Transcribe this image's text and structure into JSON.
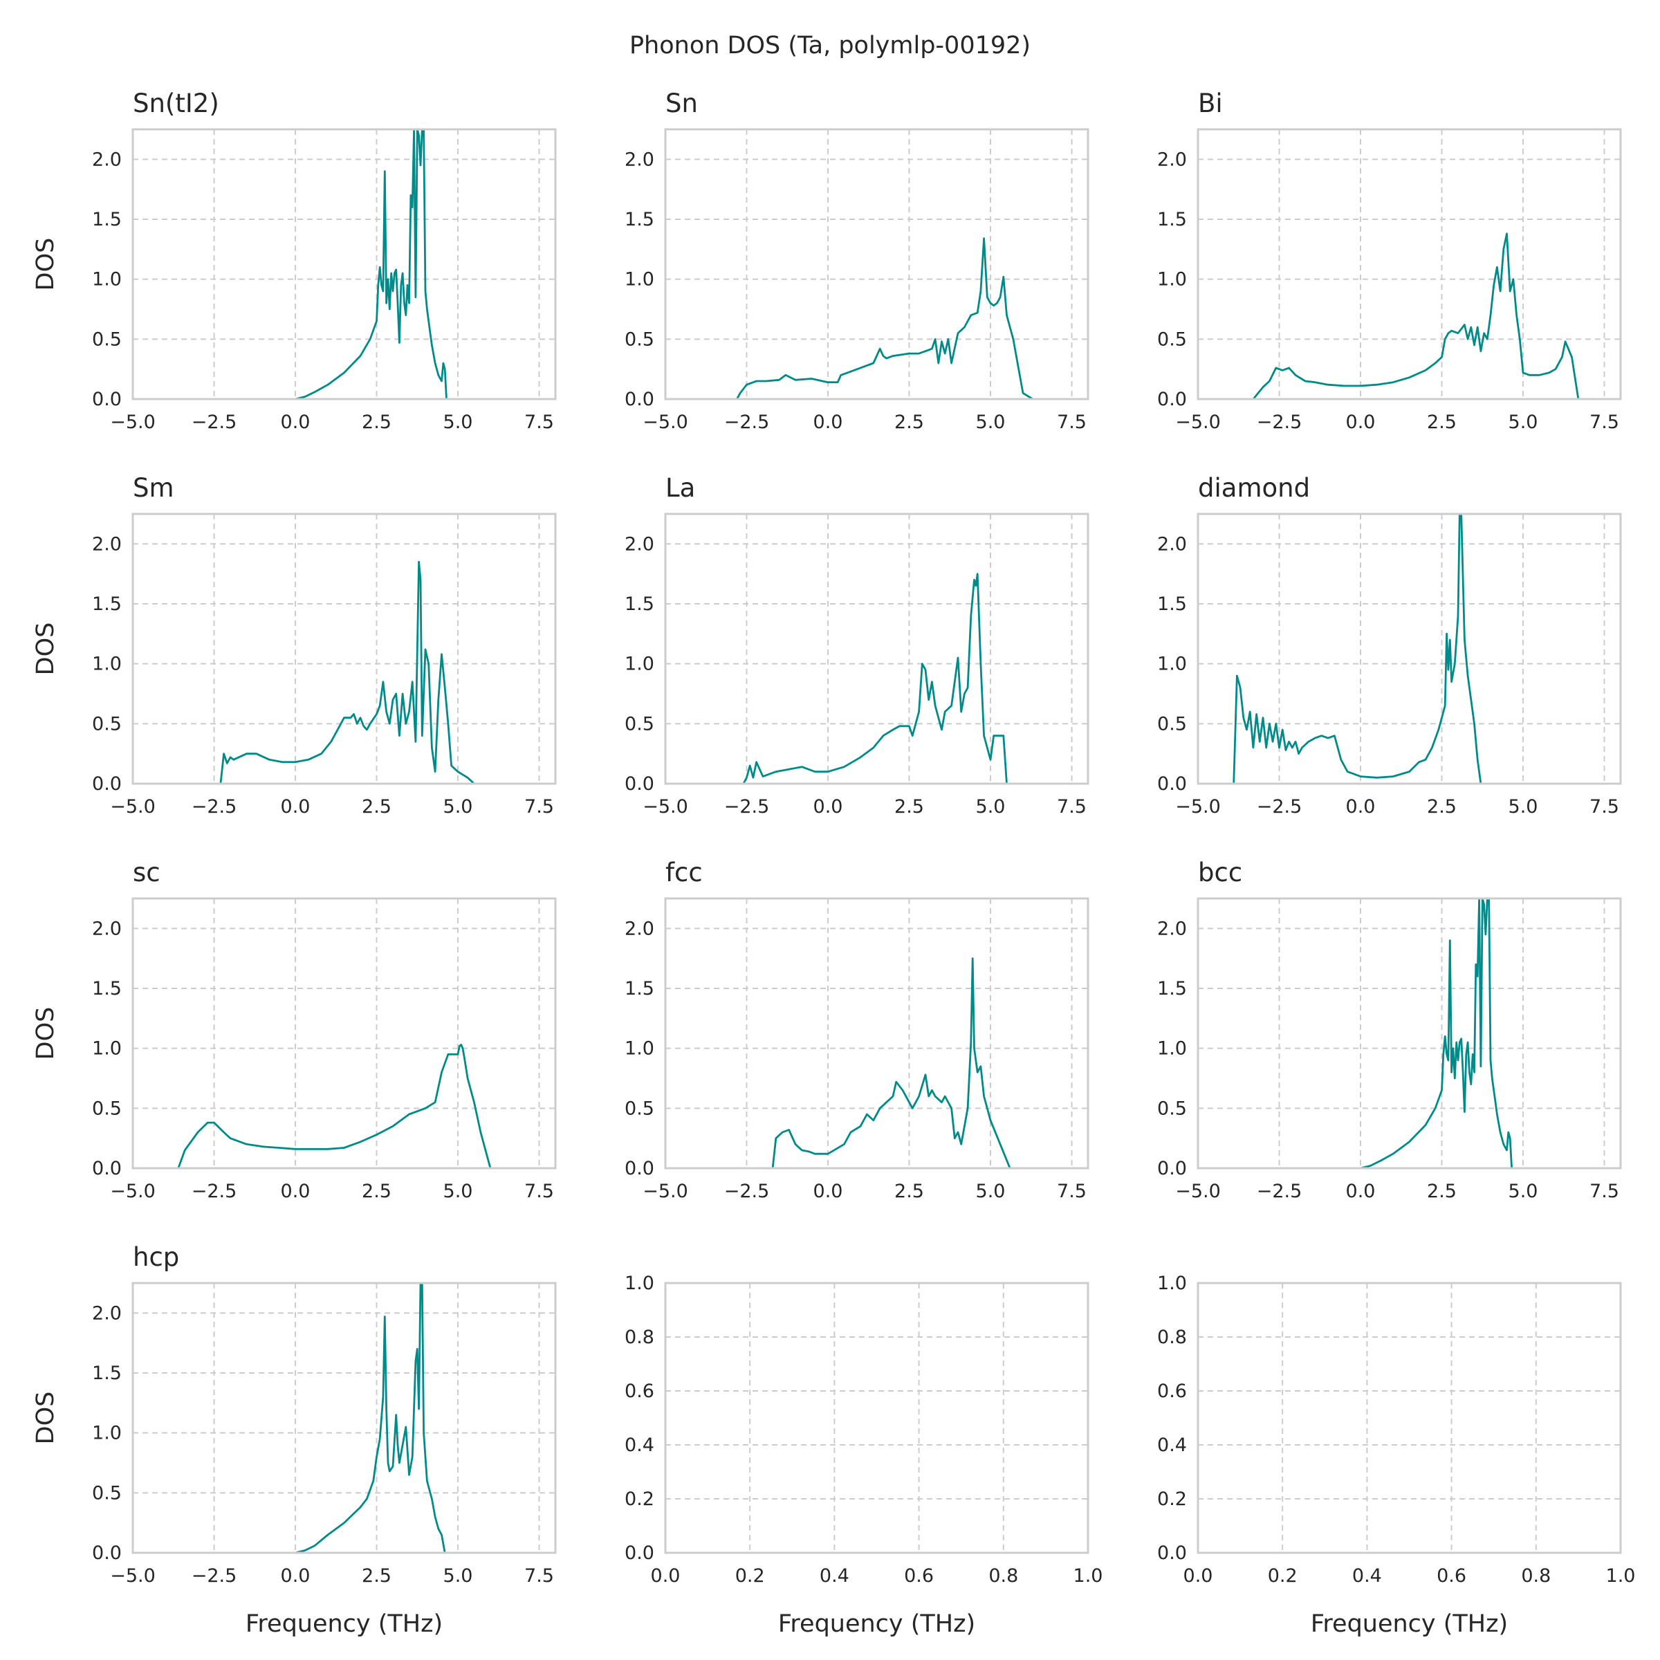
{
  "figure_title": "Phonon DOS (Ta, polymlp-00192)",
  "colors": {
    "line": "#008b8b",
    "frame": "#cccccc",
    "grid": "#cccccc",
    "text": "#262626"
  },
  "chart_data": [
    {
      "type": "line",
      "title": "Sn(tI2)",
      "xlabel": "",
      "ylabel": "DOS",
      "xlim": [
        -5,
        8
      ],
      "ylim": [
        0,
        2.25
      ],
      "xticks": [
        "−5.0",
        "−2.5",
        "0.0",
        "2.5",
        "5.0",
        "7.5"
      ],
      "yticks": [
        "0.0",
        "0.5",
        "1.0",
        "1.5",
        "2.0"
      ],
      "grid": true,
      "x": [
        0,
        0.3,
        0.6,
        1.0,
        1.5,
        2.0,
        2.3,
        2.5,
        2.55,
        2.6,
        2.65,
        2.7,
        2.75,
        2.8,
        2.85,
        2.9,
        2.95,
        3.0,
        3.05,
        3.1,
        3.15,
        3.2,
        3.25,
        3.3,
        3.35,
        3.4,
        3.45,
        3.5,
        3.55,
        3.6,
        3.65,
        3.7,
        3.75,
        3.8,
        3.85,
        3.9,
        3.95,
        4.0,
        4.05,
        4.1,
        4.15,
        4.2,
        4.3,
        4.4,
        4.5,
        4.55,
        4.6,
        4.65,
        4.7,
        4.8
      ],
      "y": [
        0,
        0.02,
        0.06,
        0.12,
        0.22,
        0.36,
        0.5,
        0.65,
        0.95,
        1.1,
        0.95,
        0.9,
        1.9,
        0.8,
        1.0,
        0.75,
        1.05,
        0.9,
        1.05,
        1.08,
        0.8,
        0.47,
        0.95,
        1.05,
        0.8,
        0.7,
        0.95,
        0.8,
        1.7,
        1.6,
        2.25,
        0.85,
        2.25,
        2.2,
        1.95,
        2.25,
        2.25,
        0.9,
        0.75,
        0.65,
        0.55,
        0.45,
        0.3,
        0.2,
        0.15,
        0.3,
        0.25,
        0.0,
        0,
        0
      ]
    },
    {
      "type": "line",
      "title": "Sn",
      "xlabel": "",
      "ylabel": "",
      "xlim": [
        -5,
        8
      ],
      "ylim": [
        0,
        2.25
      ],
      "xticks": [
        "−5.0",
        "−2.5",
        "0.0",
        "2.5",
        "5.0",
        "7.5"
      ],
      "yticks": [
        "0.0",
        "0.5",
        "1.0",
        "1.5",
        "2.0"
      ],
      "grid": true,
      "x": [
        -3.2,
        -2.8,
        -2.7,
        -2.5,
        -2.2,
        -1.9,
        -1.5,
        -1.3,
        -1.0,
        -0.5,
        0,
        0.3,
        0.4,
        0.6,
        1.0,
        1.4,
        1.6,
        1.7,
        1.8,
        2.0,
        2.5,
        2.8,
        3.0,
        3.2,
        3.3,
        3.4,
        3.5,
        3.6,
        3.7,
        3.8,
        4.0,
        4.2,
        4.4,
        4.6,
        4.7,
        4.8,
        4.9,
        5.0,
        5.1,
        5.2,
        5.3,
        5.4,
        5.5,
        5.6,
        5.7,
        5.8,
        5.9,
        6.0,
        6.3,
        6.8
      ],
      "y": [
        0,
        0,
        0.05,
        0.12,
        0.15,
        0.15,
        0.16,
        0.2,
        0.16,
        0.17,
        0.14,
        0.14,
        0.2,
        0.22,
        0.26,
        0.3,
        0.42,
        0.36,
        0.34,
        0.36,
        0.38,
        0.38,
        0.4,
        0.42,
        0.5,
        0.3,
        0.48,
        0.38,
        0.5,
        0.3,
        0.55,
        0.6,
        0.7,
        0.72,
        0.9,
        1.34,
        0.85,
        0.8,
        0.78,
        0.8,
        0.85,
        1.02,
        0.7,
        0.6,
        0.5,
        0.35,
        0.2,
        0.05,
        0,
        0
      ]
    },
    {
      "type": "line",
      "title": "Bi",
      "xlabel": "",
      "ylabel": "",
      "xlim": [
        -5,
        8
      ],
      "ylim": [
        0,
        2.25
      ],
      "xticks": [
        "−5.0",
        "−2.5",
        "0.0",
        "2.5",
        "5.0",
        "7.5"
      ],
      "yticks": [
        "0.0",
        "0.5",
        "1.0",
        "1.5",
        "2.0"
      ],
      "grid": true,
      "x": [
        -4.2,
        -3.3,
        -3.0,
        -2.8,
        -2.6,
        -2.4,
        -2.2,
        -2.0,
        -1.7,
        -1.4,
        -1.0,
        -0.5,
        0,
        0.5,
        1.0,
        1.5,
        2.0,
        2.3,
        2.5,
        2.6,
        2.7,
        2.8,
        3.0,
        3.2,
        3.3,
        3.4,
        3.5,
        3.6,
        3.7,
        3.8,
        3.9,
        4.0,
        4.1,
        4.2,
        4.3,
        4.4,
        4.5,
        4.6,
        4.7,
        4.8,
        4.9,
        5.0,
        5.2,
        5.5,
        5.8,
        6.0,
        6.2,
        6.3,
        6.5,
        6.7,
        7.0,
        7.5
      ],
      "y": [
        0,
        0,
        0.1,
        0.15,
        0.26,
        0.24,
        0.26,
        0.2,
        0.15,
        0.14,
        0.12,
        0.11,
        0.11,
        0.12,
        0.14,
        0.18,
        0.24,
        0.3,
        0.35,
        0.5,
        0.55,
        0.57,
        0.55,
        0.62,
        0.5,
        0.6,
        0.45,
        0.6,
        0.4,
        0.55,
        0.5,
        0.7,
        0.95,
        1.1,
        0.9,
        1.25,
        1.38,
        0.9,
        1.0,
        0.7,
        0.5,
        0.22,
        0.2,
        0.2,
        0.22,
        0.25,
        0.35,
        0.48,
        0.35,
        0,
        0,
        0
      ]
    },
    {
      "type": "line",
      "title": "Sm",
      "xlabel": "",
      "ylabel": "DOS",
      "xlim": [
        -5,
        8
      ],
      "ylim": [
        0,
        2.25
      ],
      "xticks": [
        "−5.0",
        "−2.5",
        "0.0",
        "2.5",
        "5.0",
        "7.5"
      ],
      "yticks": [
        "0.0",
        "0.5",
        "1.0",
        "1.5",
        "2.0"
      ],
      "grid": true,
      "x": [
        -2.9,
        -2.3,
        -2.2,
        -2.1,
        -2.0,
        -1.9,
        -1.5,
        -1.2,
        -0.8,
        -0.4,
        0,
        0.4,
        0.8,
        1.1,
        1.3,
        1.5,
        1.7,
        1.8,
        1.9,
        2.0,
        2.1,
        2.2,
        2.3,
        2.5,
        2.6,
        2.7,
        2.8,
        2.9,
        3.0,
        3.1,
        3.2,
        3.3,
        3.4,
        3.5,
        3.6,
        3.7,
        3.8,
        3.85,
        3.9,
        4.0,
        4.1,
        4.2,
        4.3,
        4.4,
        4.5,
        4.6,
        4.7,
        4.8,
        5.0,
        5.3,
        5.5,
        5.6,
        5.8,
        6.3
      ],
      "y": [
        0,
        0,
        0.25,
        0.17,
        0.22,
        0.2,
        0.25,
        0.25,
        0.2,
        0.18,
        0.18,
        0.2,
        0.25,
        0.35,
        0.45,
        0.55,
        0.55,
        0.58,
        0.5,
        0.55,
        0.48,
        0.45,
        0.5,
        0.58,
        0.65,
        0.85,
        0.6,
        0.5,
        0.7,
        0.75,
        0.4,
        0.75,
        0.5,
        0.6,
        0.85,
        0.35,
        1.85,
        1.7,
        0.4,
        1.12,
        1.0,
        0.3,
        0.1,
        0.7,
        1.08,
        0.8,
        0.5,
        0.15,
        0.1,
        0.05,
        0,
        0,
        0,
        0
      ]
    },
    {
      "type": "line",
      "title": "La",
      "xlabel": "",
      "ylabel": "",
      "xlim": [
        -5,
        8
      ],
      "ylim": [
        0,
        2.25
      ],
      "xticks": [
        "−5.0",
        "−2.5",
        "0.0",
        "2.5",
        "5.0",
        "7.5"
      ],
      "yticks": [
        "0.0",
        "0.5",
        "1.0",
        "1.5",
        "2.0"
      ],
      "grid": true,
      "x": [
        -3.0,
        -2.6,
        -2.5,
        -2.4,
        -2.3,
        -2.2,
        -2.0,
        -1.6,
        -1.2,
        -0.8,
        -0.4,
        0,
        0.5,
        1.0,
        1.4,
        1.7,
        2.0,
        2.2,
        2.5,
        2.6,
        2.8,
        2.9,
        3.0,
        3.1,
        3.2,
        3.3,
        3.4,
        3.5,
        3.6,
        3.8,
        4.0,
        4.1,
        4.2,
        4.3,
        4.4,
        4.5,
        4.55,
        4.6,
        4.7,
        4.8,
        5.0,
        5.1,
        5.2,
        5.4,
        5.5,
        5.6,
        6.2
      ],
      "y": [
        0,
        0,
        0.05,
        0.15,
        0.05,
        0.18,
        0.06,
        0.1,
        0.12,
        0.14,
        0.1,
        0.1,
        0.14,
        0.22,
        0.3,
        0.4,
        0.45,
        0.48,
        0.48,
        0.4,
        0.6,
        1.0,
        0.95,
        0.7,
        0.85,
        0.65,
        0.55,
        0.45,
        0.6,
        0.65,
        1.05,
        0.6,
        0.75,
        0.8,
        1.4,
        1.7,
        1.65,
        1.75,
        1.0,
        0.4,
        0.2,
        0.4,
        0.4,
        0.4,
        0,
        0,
        0
      ]
    },
    {
      "type": "line",
      "title": "diamond",
      "xlabel": "",
      "ylabel": "",
      "xlim": [
        -5,
        8
      ],
      "ylim": [
        0,
        2.25
      ],
      "xticks": [
        "−5.0",
        "−2.5",
        "0.0",
        "2.5",
        "5.0",
        "7.5"
      ],
      "yticks": [
        "0.0",
        "0.5",
        "1.0",
        "1.5",
        "2.0"
      ],
      "grid": true,
      "x": [
        -4.5,
        -3.9,
        -3.8,
        -3.7,
        -3.6,
        -3.5,
        -3.4,
        -3.3,
        -3.2,
        -3.1,
        -3.0,
        -2.9,
        -2.8,
        -2.7,
        -2.6,
        -2.5,
        -2.4,
        -2.3,
        -2.2,
        -2.1,
        -2.0,
        -1.9,
        -1.8,
        -1.6,
        -1.4,
        -1.2,
        -1.0,
        -0.8,
        -0.6,
        -0.4,
        -0.2,
        0,
        0.5,
        1.0,
        1.5,
        1.8,
        2.0,
        2.2,
        2.4,
        2.5,
        2.6,
        2.65,
        2.7,
        2.75,
        2.8,
        2.9,
        3.0,
        3.05,
        3.1,
        3.2,
        3.3,
        3.4,
        3.5,
        3.6,
        3.7,
        4.2
      ],
      "y": [
        0,
        0,
        0.9,
        0.8,
        0.55,
        0.45,
        0.6,
        0.3,
        0.58,
        0.35,
        0.55,
        0.3,
        0.5,
        0.35,
        0.5,
        0.3,
        0.45,
        0.28,
        0.35,
        0.3,
        0.35,
        0.25,
        0.3,
        0.35,
        0.38,
        0.4,
        0.38,
        0.4,
        0.2,
        0.1,
        0.08,
        0.06,
        0.05,
        0.06,
        0.1,
        0.18,
        0.2,
        0.3,
        0.45,
        0.55,
        0.65,
        1.25,
        0.95,
        1.2,
        0.85,
        1.0,
        1.4,
        2.25,
        2.25,
        1.2,
        0.9,
        0.7,
        0.5,
        0.2,
        0,
        0
      ]
    },
    {
      "type": "line",
      "title": "sc",
      "xlabel": "",
      "ylabel": "DOS",
      "xlim": [
        -5,
        8
      ],
      "ylim": [
        0,
        2.25
      ],
      "xticks": [
        "−5.0",
        "−2.5",
        "0.0",
        "2.5",
        "5.0",
        "7.5"
      ],
      "yticks": [
        "0.0",
        "0.5",
        "1.0",
        "1.5",
        "2.0"
      ],
      "grid": true,
      "x": [
        -4.4,
        -3.6,
        -3.4,
        -3.0,
        -2.7,
        -2.5,
        -2.2,
        -2.0,
        -1.5,
        -1.0,
        -0.5,
        0,
        0.5,
        1.0,
        1.5,
        2.0,
        2.5,
        3.0,
        3.5,
        4.0,
        4.3,
        4.5,
        4.7,
        4.9,
        5.0,
        5.05,
        5.1,
        5.15,
        5.2,
        5.3,
        5.5,
        5.7,
        5.9,
        6.0,
        6.5,
        7.0
      ],
      "y": [
        0,
        0,
        0.15,
        0.3,
        0.38,
        0.38,
        0.3,
        0.25,
        0.2,
        0.18,
        0.17,
        0.16,
        0.16,
        0.16,
        0.17,
        0.22,
        0.28,
        0.35,
        0.45,
        0.5,
        0.55,
        0.8,
        0.95,
        0.95,
        0.95,
        1.02,
        1.03,
        1.0,
        0.92,
        0.75,
        0.55,
        0.3,
        0.1,
        0,
        0,
        0
      ]
    },
    {
      "type": "line",
      "title": "fcc",
      "xlabel": "",
      "ylabel": "",
      "xlim": [
        -5,
        8
      ],
      "ylim": [
        0,
        2.25
      ],
      "xticks": [
        "−5.0",
        "−2.5",
        "0.0",
        "2.5",
        "5.0",
        "7.5"
      ],
      "yticks": [
        "0.0",
        "0.5",
        "1.0",
        "1.5",
        "2.0"
      ],
      "grid": true,
      "x": [
        -2.0,
        -1.7,
        -1.6,
        -1.4,
        -1.2,
        -1.0,
        -0.8,
        -0.6,
        -0.4,
        0,
        0.5,
        0.7,
        1.0,
        1.2,
        1.4,
        1.6,
        1.8,
        2.0,
        2.1,
        2.3,
        2.5,
        2.6,
        2.8,
        3.0,
        3.1,
        3.2,
        3.3,
        3.5,
        3.6,
        3.8,
        3.9,
        4.0,
        4.1,
        4.2,
        4.3,
        4.4,
        4.45,
        4.5,
        4.6,
        4.7,
        4.8,
        4.9,
        5.0,
        5.3,
        5.6,
        5.7,
        6.2
      ],
      "y": [
        0,
        0,
        0.25,
        0.3,
        0.32,
        0.2,
        0.15,
        0.14,
        0.12,
        0.12,
        0.2,
        0.3,
        0.35,
        0.45,
        0.4,
        0.5,
        0.55,
        0.6,
        0.72,
        0.65,
        0.55,
        0.5,
        0.6,
        0.78,
        0.6,
        0.65,
        0.6,
        0.55,
        0.6,
        0.5,
        0.25,
        0.3,
        0.2,
        0.35,
        0.5,
        1.05,
        1.75,
        1.0,
        0.8,
        0.85,
        0.6,
        0.5,
        0.4,
        0.2,
        0,
        0,
        0
      ]
    },
    {
      "type": "line",
      "title": "bcc",
      "xlabel": "",
      "ylabel": "",
      "xlim": [
        -5,
        8
      ],
      "ylim": [
        0,
        2.25
      ],
      "xticks": [
        "−5.0",
        "−2.5",
        "0.0",
        "2.5",
        "5.0",
        "7.5"
      ],
      "yticks": [
        "0.0",
        "0.5",
        "1.0",
        "1.5",
        "2.0"
      ],
      "grid": true,
      "x": [
        0,
        0.3,
        0.6,
        1.0,
        1.5,
        2.0,
        2.3,
        2.5,
        2.55,
        2.6,
        2.65,
        2.7,
        2.75,
        2.8,
        2.85,
        2.9,
        2.95,
        3.0,
        3.05,
        3.1,
        3.15,
        3.2,
        3.25,
        3.3,
        3.35,
        3.4,
        3.45,
        3.5,
        3.55,
        3.6,
        3.65,
        3.7,
        3.75,
        3.8,
        3.85,
        3.9,
        3.95,
        4.0,
        4.05,
        4.1,
        4.15,
        4.2,
        4.3,
        4.4,
        4.5,
        4.55,
        4.6,
        4.65,
        4.7,
        4.9
      ],
      "y": [
        0,
        0.02,
        0.06,
        0.12,
        0.22,
        0.36,
        0.5,
        0.65,
        0.95,
        1.1,
        0.95,
        0.9,
        1.9,
        0.8,
        1.0,
        0.75,
        1.05,
        0.9,
        1.05,
        1.08,
        0.8,
        0.47,
        0.95,
        1.05,
        0.8,
        0.7,
        0.95,
        0.8,
        1.7,
        1.6,
        2.25,
        0.85,
        2.25,
        2.2,
        1.95,
        2.25,
        2.25,
        0.9,
        0.75,
        0.65,
        0.55,
        0.45,
        0.3,
        0.2,
        0.15,
        0.3,
        0.25,
        0.0,
        0,
        0
      ]
    },
    {
      "type": "line",
      "title": "hcp",
      "xlabel": "Frequency (THz)",
      "ylabel": "DOS",
      "xlim": [
        -5,
        8
      ],
      "ylim": [
        0,
        2.25
      ],
      "xticks": [
        "−5.0",
        "−2.5",
        "0.0",
        "2.5",
        "5.0",
        "7.5"
      ],
      "yticks": [
        "0.0",
        "0.5",
        "1.0",
        "1.5",
        "2.0"
      ],
      "grid": true,
      "x": [
        0,
        0.3,
        0.6,
        1.0,
        1.5,
        2.0,
        2.2,
        2.4,
        2.5,
        2.6,
        2.7,
        2.75,
        2.8,
        2.85,
        2.9,
        3.0,
        3.1,
        3.15,
        3.2,
        3.3,
        3.4,
        3.5,
        3.6,
        3.7,
        3.75,
        3.8,
        3.85,
        3.9,
        3.95,
        4.0,
        4.05,
        4.1,
        4.15,
        4.2,
        4.3,
        4.4,
        4.5,
        4.6,
        4.7,
        5.0
      ],
      "y": [
        0,
        0.02,
        0.06,
        0.15,
        0.25,
        0.38,
        0.45,
        0.6,
        0.8,
        0.95,
        1.3,
        1.97,
        1.2,
        0.75,
        0.68,
        0.72,
        1.15,
        0.9,
        0.75,
        0.9,
        1.05,
        0.65,
        0.8,
        1.6,
        1.7,
        1.2,
        2.25,
        2.25,
        1.0,
        0.8,
        0.6,
        0.55,
        0.5,
        0.45,
        0.3,
        0.2,
        0.15,
        0,
        0,
        0
      ]
    },
    {
      "type": "line",
      "title": "",
      "xlabel": "Frequency (THz)",
      "ylabel": "",
      "xlim": [
        0,
        1
      ],
      "ylim": [
        0,
        1
      ],
      "xticks": [
        "0.0",
        "0.2",
        "0.4",
        "0.6",
        "0.8",
        "1.0"
      ],
      "yticks": [
        "0.0",
        "0.2",
        "0.4",
        "0.6",
        "0.8",
        "1.0"
      ],
      "grid": true,
      "x": [],
      "y": []
    },
    {
      "type": "line",
      "title": "",
      "xlabel": "Frequency (THz)",
      "ylabel": "",
      "xlim": [
        0,
        1
      ],
      "ylim": [
        0,
        1
      ],
      "xticks": [
        "0.0",
        "0.2",
        "0.4",
        "0.6",
        "0.8",
        "1.0"
      ],
      "yticks": [
        "0.0",
        "0.2",
        "0.4",
        "0.6",
        "0.8",
        "1.0"
      ],
      "grid": true,
      "x": [],
      "y": []
    }
  ]
}
